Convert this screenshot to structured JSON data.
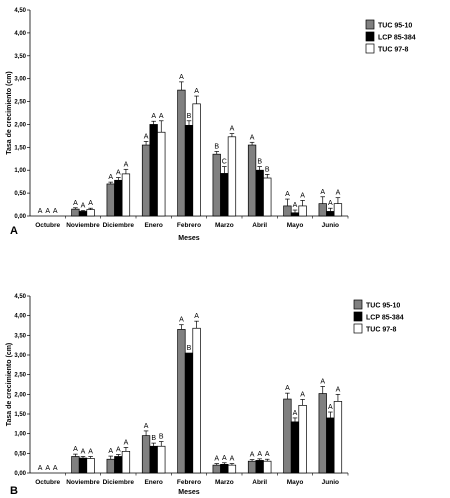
{
  "chart_data": [
    {
      "type": "bar",
      "panel_label": "A",
      "xlabel": "Meses",
      "ylabel": "Tasa de crecimiento (cm)",
      "ylim": [
        0,
        4.5
      ],
      "yticks": [
        "0,00",
        "0,50",
        "1,00",
        "1,50",
        "2,00",
        "2,50",
        "3,00",
        "3,50",
        "4,00",
        "4,50"
      ],
      "categories": [
        "Octubre",
        "Noviembre",
        "Diciembre",
        "Enero",
        "Febrero",
        "Marzo",
        "Abril",
        "Mayo",
        "Junio"
      ],
      "legend_position": "top-right",
      "series": [
        {
          "name": "TUC 95-10",
          "color": "#808080",
          "values": [
            0,
            0.15,
            0.7,
            1.55,
            2.75,
            1.35,
            1.55,
            0.22,
            0.27
          ],
          "errors": [
            0,
            0.03,
            0.04,
            0.08,
            0.18,
            0.06,
            0.06,
            0.15,
            0.15
          ],
          "labels": [
            "A",
            "A",
            "A",
            "A",
            "A",
            "B",
            "A",
            "A",
            "A"
          ]
        },
        {
          "name": "LCP 85-384",
          "color": "#000000",
          "values": [
            0,
            0.1,
            0.78,
            2.0,
            1.98,
            0.93,
            1.0,
            0.07,
            0.1
          ],
          "errors": [
            0,
            0.02,
            0.06,
            0.07,
            0.1,
            0.15,
            0.08,
            0.06,
            0.07
          ],
          "labels": [
            "A",
            "A",
            "A",
            "A",
            "B",
            "C",
            "B",
            "A",
            "A"
          ]
        },
        {
          "name": "TUC 97-8",
          "color": "#ffffff",
          "values": [
            0,
            0.14,
            0.92,
            1.83,
            2.45,
            1.73,
            0.83,
            0.22,
            0.27
          ],
          "errors": [
            0,
            0.03,
            0.1,
            0.25,
            0.17,
            0.07,
            0.08,
            0.12,
            0.13
          ],
          "labels": [
            "A",
            "A",
            "A",
            "A",
            "A",
            "A",
            "B",
            "A",
            "A"
          ]
        }
      ]
    },
    {
      "type": "bar",
      "panel_label": "B",
      "xlabel": "Meses",
      "ylabel": "Tasa de crecimiento (cm)",
      "ylim": [
        0,
        4.5
      ],
      "yticks": [
        "0,00",
        "0,50",
        "1,00",
        "1,50",
        "2,00",
        "2,50",
        "3,00",
        "3,50",
        "4,00",
        "4,50"
      ],
      "categories": [
        "Octubre",
        "Noviembre",
        "Diciembre",
        "Enero",
        "Febrero",
        "Marzo",
        "Abril",
        "Mayo",
        "Junio"
      ],
      "legend_position": "top-right",
      "series": [
        {
          "name": "TUC 95-10",
          "color": "#808080",
          "values": [
            0,
            0.42,
            0.35,
            0.95,
            3.65,
            0.2,
            0.3,
            1.88,
            2.02
          ],
          "errors": [
            0,
            0.06,
            0.08,
            0.12,
            0.12,
            0.04,
            0.04,
            0.15,
            0.18
          ],
          "labels": [
            "A",
            "A",
            "A",
            "A",
            "A",
            "A",
            "A",
            "A",
            "A"
          ]
        },
        {
          "name": "LCP 85-384",
          "color": "#000000",
          "values": [
            0,
            0.38,
            0.42,
            0.68,
            3.05,
            0.22,
            0.32,
            1.3,
            1.4
          ],
          "errors": [
            0,
            0.04,
            0.05,
            0.08,
            0.0,
            0.04,
            0.04,
            0.1,
            0.15
          ],
          "labels": [
            "A",
            "A",
            "A",
            "B",
            "B",
            "A",
            "A",
            "A",
            "A"
          ]
        },
        {
          "name": "TUC 97-8",
          "color": "#ffffff",
          "values": [
            0,
            0.37,
            0.55,
            0.68,
            3.68,
            0.2,
            0.3,
            1.72,
            1.82
          ],
          "errors": [
            0,
            0.05,
            0.1,
            0.12,
            0.18,
            0.04,
            0.05,
            0.15,
            0.18
          ],
          "labels": [
            "A",
            "A",
            "A",
            "B",
            "A",
            "A",
            "A",
            "A",
            "A"
          ]
        }
      ]
    }
  ]
}
